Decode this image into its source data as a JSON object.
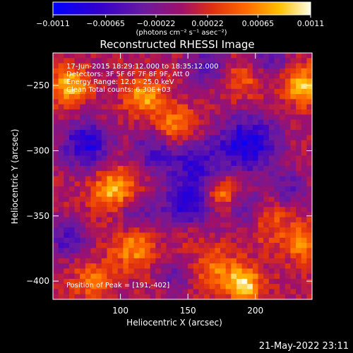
{
  "chart_data": {
    "type": "heatmap",
    "title": "Reconstructed RHESSI Image",
    "xlabel": "Heliocentric X (arcsec)",
    "ylabel": "Heliocentric Y (arcsec)",
    "xlim": [
      50,
      242
    ],
    "ylim": [
      -414,
      -225
    ],
    "x_ticks": [
      100,
      150,
      200
    ],
    "y_ticks": [
      -400,
      -350,
      -300,
      -250
    ],
    "colorbar": {
      "range": [
        -0.0011,
        0.0011
      ],
      "tick_values": [
        -0.0011,
        -0.00065,
        -0.00022,
        0.00022,
        0.00065,
        0.0011
      ],
      "tick_labels": [
        "-0.0011",
        "-0.00065",
        "-0.00022",
        "0.00022",
        "0.00065",
        "0.0011"
      ],
      "unit_label": "(photons cm⁻² s⁻¹ asec⁻²)"
    },
    "annotations": [
      "17-Jun-2015 18:29:12.000 to 18:35:12.000",
      "Detectors: 3F 5F 6F 7F 8F 9F, Att 0",
      "Energy Range: 12.0 - 25.0 keV",
      "Clean    Total counts: 6.30E+03"
    ],
    "peak_label": "Position of Peak = [191,-402]",
    "peak": [
      191,
      -402
    ],
    "grid": false
  },
  "footer": {
    "timestamp": "21-May-2022 23:11"
  },
  "colors": {
    "background": "#000000",
    "foreground": "#ffffff"
  }
}
